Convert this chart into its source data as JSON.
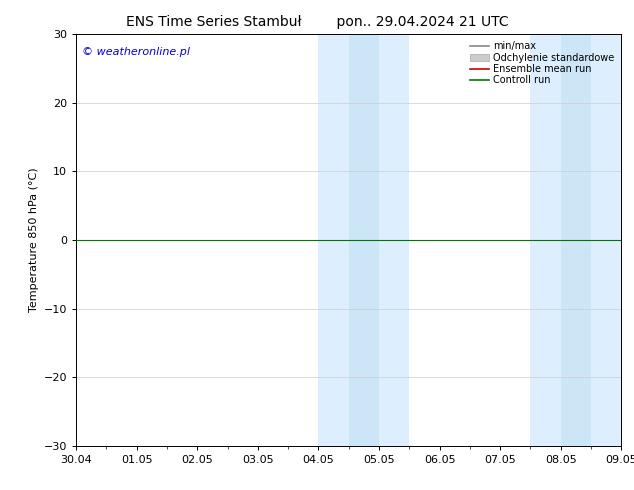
{
  "title_left": "ENS Time Series Stambuł",
  "title_right": "pon.. 29.04.2024 21 UTC",
  "ylabel": "Temperature 850 hPa (°C)",
  "watermark": "© weatheronline.pl",
  "watermark_color": "#0000dd",
  "ylim": [
    -30,
    30
  ],
  "yticks": [
    -30,
    -20,
    -10,
    0,
    10,
    20,
    30
  ],
  "xtick_labels": [
    "30.04",
    "01.05",
    "02.05",
    "03.05",
    "04.05",
    "05.05",
    "06.05",
    "07.05",
    "08.05",
    "09.05"
  ],
  "xtick_positions": [
    0,
    1,
    2,
    3,
    4,
    5,
    6,
    7,
    8,
    9
  ],
  "shaded_bands": [
    {
      "x_start": 4.0,
      "x_end": 4.5,
      "color": "#ddeeff"
    },
    {
      "x_start": 4.5,
      "x_end": 5.0,
      "color": "#cce6f8"
    },
    {
      "x_start": 5.0,
      "x_end": 5.5,
      "color": "#ddeeff"
    },
    {
      "x_start": 7.5,
      "x_end": 8.0,
      "color": "#ddeeff"
    },
    {
      "x_start": 8.0,
      "x_end": 8.5,
      "color": "#cce6f8"
    },
    {
      "x_start": 8.5,
      "x_end": 9.0,
      "color": "#ddeeff"
    }
  ],
  "control_run_color": "#007700",
  "ensemble_mean_color": "#cc0000",
  "minmax_color": "#888888",
  "stddev_color": "#cccccc",
  "background_color": "#ffffff",
  "legend_labels": [
    "min/max",
    "Odchylenie standardowe",
    "Ensemble mean run",
    "Controll run"
  ],
  "title_fontsize": 10,
  "ylabel_fontsize": 8,
  "tick_fontsize": 8,
  "watermark_fontsize": 8,
  "legend_fontsize": 7
}
